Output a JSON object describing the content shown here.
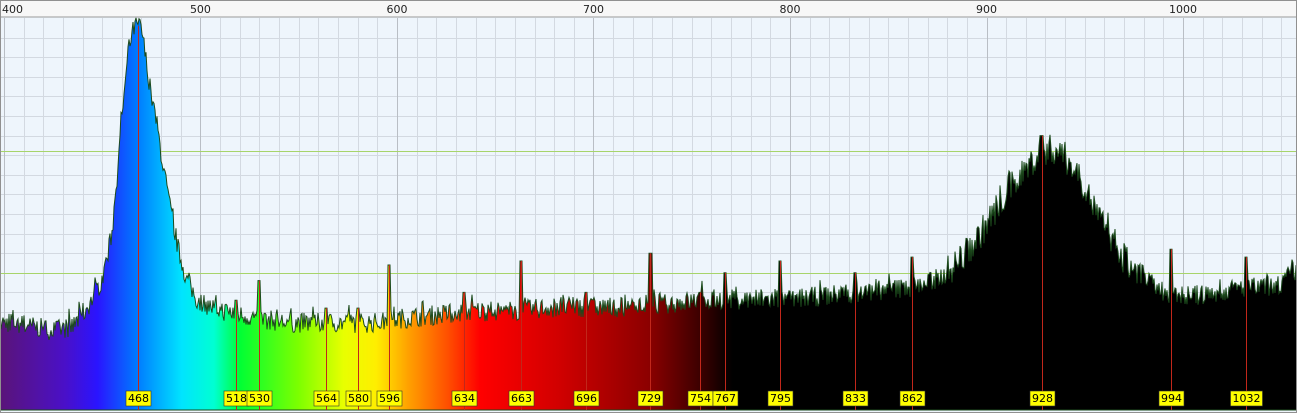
{
  "chart_data": {
    "type": "area",
    "title": "",
    "xlabel": "",
    "ylabel": "",
    "xlim": [
      398,
      1058
    ],
    "ylim": [
      0,
      100
    ],
    "x_ticks": [
      400,
      500,
      600,
      700,
      800,
      900,
      1000
    ],
    "tick_labels": [
      "400",
      "500",
      "600",
      "700",
      "800",
      "900",
      "1000"
    ],
    "grid": true,
    "fill": "visible-spectrum color gradient, black above 770 nm",
    "series": [
      {
        "points": [
          [
            398,
            22
          ],
          [
            405,
            22
          ],
          [
            415,
            21
          ],
          [
            425,
            20
          ],
          [
            435,
            21
          ],
          [
            440,
            24
          ],
          [
            445,
            28
          ],
          [
            450,
            33
          ],
          [
            455,
            45
          ],
          [
            458,
            62
          ],
          [
            461,
            80
          ],
          [
            464,
            93
          ],
          [
            466,
            97
          ],
          [
            468,
            98
          ],
          [
            470,
            97
          ],
          [
            472,
            90
          ],
          [
            475,
            80
          ],
          [
            478,
            72
          ],
          [
            481,
            62
          ],
          [
            485,
            50
          ],
          [
            489,
            40
          ],
          [
            493,
            33
          ],
          [
            498,
            28
          ],
          [
            505,
            26
          ],
          [
            512,
            25
          ],
          [
            520,
            24
          ],
          [
            530,
            23
          ],
          [
            545,
            22
          ],
          [
            560,
            22
          ],
          [
            575,
            22
          ],
          [
            590,
            22
          ],
          [
            600,
            23
          ],
          [
            620,
            24
          ],
          [
            640,
            25
          ],
          [
            660,
            25
          ],
          [
            680,
            26
          ],
          [
            700,
            26
          ],
          [
            720,
            26
          ],
          [
            740,
            27
          ],
          [
            760,
            28
          ],
          [
            780,
            28
          ],
          [
            800,
            28
          ],
          [
            820,
            29
          ],
          [
            840,
            30
          ],
          [
            860,
            31
          ],
          [
            875,
            33
          ],
          [
            885,
            37
          ],
          [
            895,
            43
          ],
          [
            905,
            51
          ],
          [
            913,
            57
          ],
          [
            920,
            61
          ],
          [
            925,
            64
          ],
          [
            930,
            66
          ],
          [
            935,
            66
          ],
          [
            940,
            64
          ],
          [
            945,
            61
          ],
          [
            950,
            57
          ],
          [
            955,
            51
          ],
          [
            962,
            44
          ],
          [
            970,
            38
          ],
          [
            980,
            33
          ],
          [
            990,
            30
          ],
          [
            1000,
            29
          ],
          [
            1010,
            29
          ],
          [
            1020,
            30
          ],
          [
            1030,
            31
          ],
          [
            1040,
            31
          ],
          [
            1050,
            32
          ],
          [
            1056,
            35
          ]
        ]
      }
    ],
    "reference_lines": [
      {
        "orientation": "horizontal",
        "y": 66
      },
      {
        "orientation": "horizontal",
        "y": 35
      },
      {
        "orientation": "horizontal",
        "y": 10
      }
    ],
    "peaks": [
      {
        "x": 468,
        "label": "468",
        "height": 98
      },
      {
        "x": 518,
        "label": "518",
        "height": 28
      },
      {
        "x": 530,
        "label": "530",
        "height": 33
      },
      {
        "x": 564,
        "label": "564",
        "height": 26
      },
      {
        "x": 580,
        "label": "580",
        "height": 26
      },
      {
        "x": 596,
        "label": "596",
        "height": 37
      },
      {
        "x": 634,
        "label": "634",
        "height": 30
      },
      {
        "x": 663,
        "label": "663",
        "height": 38
      },
      {
        "x": 696,
        "label": "696",
        "height": 30
      },
      {
        "x": 729,
        "label": "729",
        "height": 40
      },
      {
        "x": 754,
        "label": "754",
        "height": 30
      },
      {
        "x": 767,
        "label": "767",
        "height": 35
      },
      {
        "x": 795,
        "label": "795",
        "height": 38
      },
      {
        "x": 833,
        "label": "833",
        "height": 35
      },
      {
        "x": 862,
        "label": "862",
        "height": 39
      },
      {
        "x": 928,
        "label": "928",
        "height": 70
      },
      {
        "x": 994,
        "label": "994",
        "height": 41
      },
      {
        "x": 1032,
        "label": "1032",
        "height": 39
      }
    ],
    "colors": {
      "plot_background": "#eef5fc",
      "grid_major": "#b9bec5",
      "grid_minor": "#d3d9e1",
      "reference_line": "#a7d46a",
      "peak_line": "#c1271b",
      "peak_label_fill": "#ffff00",
      "outline": "#1c4a1c",
      "frame": "#909090"
    }
  }
}
